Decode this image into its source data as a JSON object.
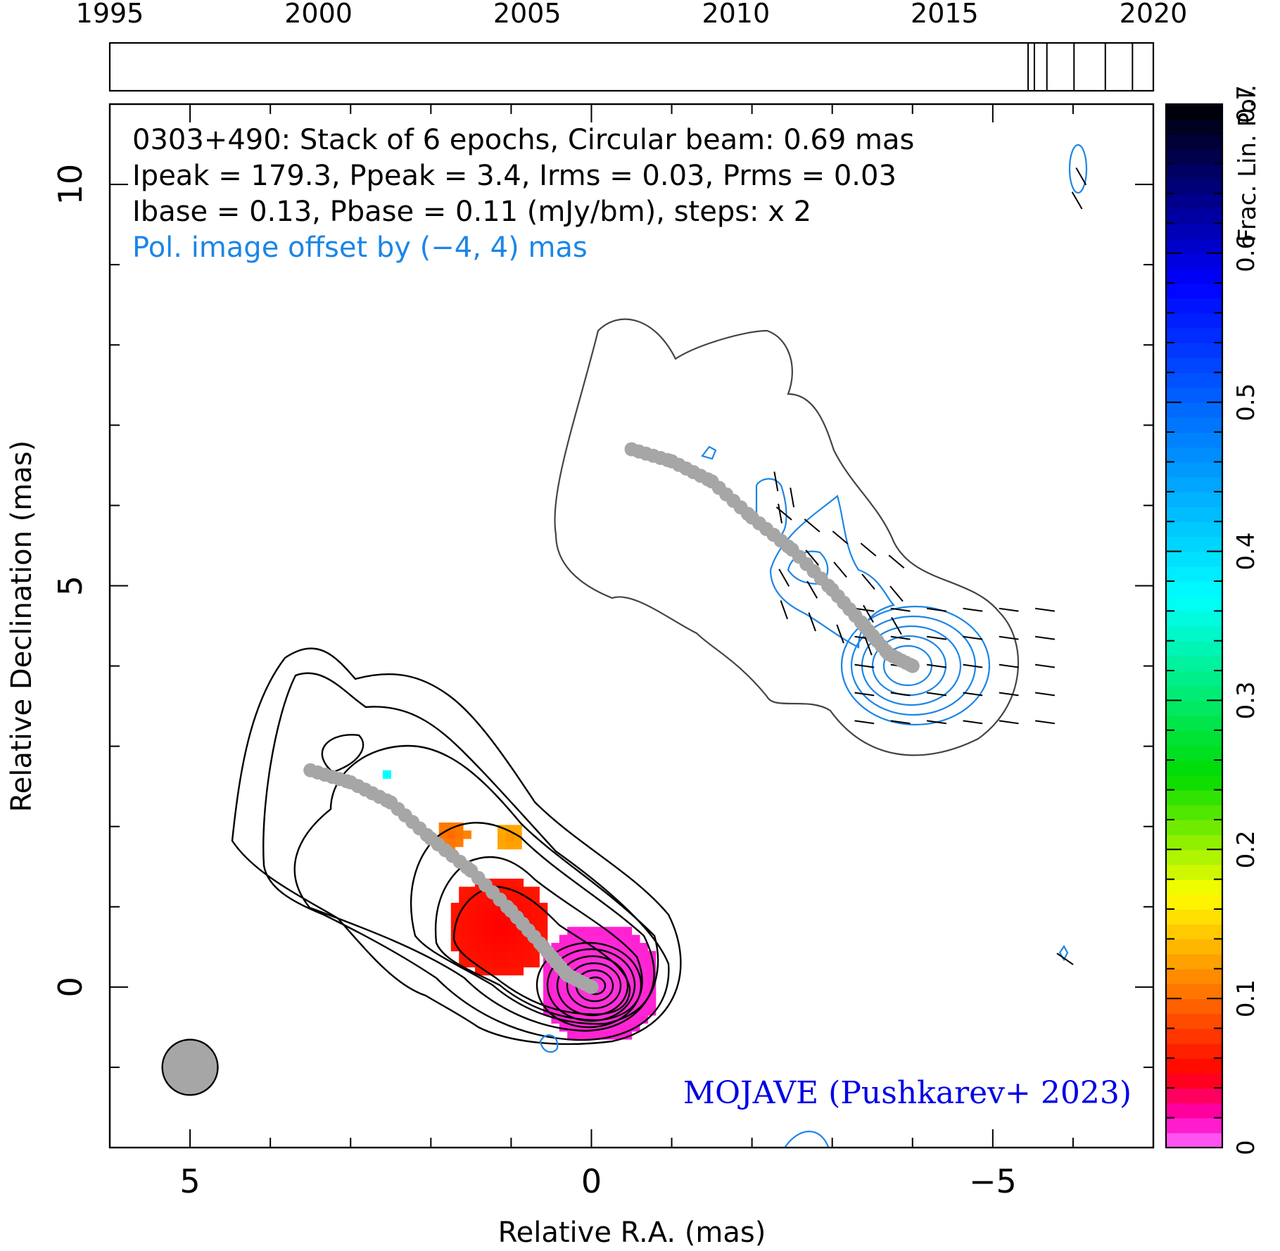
{
  "chart_data": {
    "type": "heatmap",
    "source": "0303+490",
    "annotation_lines": [
      "0303+490: Stack of 6 epochs, Circular beam: 0.69 mas",
      "Ipeak = 179.3, Ppeak = 3.4, Irms = 0.03, Prms = 0.03",
      "Ibase = 0.13, Pbase = 0.11 (mJy/bm), steps: x 2"
    ],
    "pol_offset_note": "Pol. image offset by (−4, 4) mas",
    "pol_offset_mas": [
      -4,
      4
    ],
    "credit": "MOJAVE (Pushkarev+ 2023)",
    "xlabel": "Relative R.A. (mas)",
    "ylabel": "Relative Declination (mas)",
    "xlim": [
      6,
      -7
    ],
    "ylim": [
      -2,
      11
    ],
    "xticks": [
      5,
      0,
      -5
    ],
    "xtick_labels": [
      "5",
      "0",
      "−5"
    ],
    "yticks": [
      0,
      5,
      10
    ],
    "ytick_labels": [
      "0",
      "5",
      "10"
    ],
    "beam_diameter_mas": 0.69,
    "ridgeline": {
      "color": "#a6a6a6",
      "points": [
        [
          3.5,
          2.7
        ],
        [
          3.0,
          2.55
        ],
        [
          2.5,
          2.3
        ],
        [
          2.0,
          1.85
        ],
        [
          1.5,
          1.45
        ],
        [
          1.0,
          0.95
        ],
        [
          0.6,
          0.5
        ],
        [
          0.3,
          0.15
        ],
        [
          0.0,
          0.0
        ]
      ]
    },
    "fractional_polarization": {
      "colorbar_label": "Frac. Lin. Pol.",
      "colorbar_range": [
        0,
        0.7
      ],
      "colorbar_ticks": [
        0,
        0.1,
        0.2,
        0.3,
        0.4,
        0.5,
        0.6,
        0.7
      ],
      "colorbar_tick_labels": [
        "0",
        "0.1",
        "0.2",
        "0.3",
        "0.4",
        "0.5",
        "0.6",
        "0.7"
      ],
      "regions": [
        {
          "name": "core",
          "center": [
            -0.1,
            0.05
          ],
          "radius": 0.75,
          "value": 0.01
        },
        {
          "name": "inner-jet",
          "center": [
            1.15,
            0.75
          ],
          "radius": 0.65,
          "value": 0.05
        },
        {
          "name": "jet-knot-a",
          "center": [
            1.75,
            1.9
          ],
          "radius": 0.2,
          "value": 0.1
        },
        {
          "name": "jet-knot-b",
          "center": [
            1.0,
            1.85
          ],
          "radius": 0.18,
          "value": 0.12
        },
        {
          "name": "isolated-pixel",
          "center": [
            2.55,
            2.65
          ],
          "radius": 0.1,
          "value": 0.37
        }
      ]
    },
    "timeline": {
      "range": [
        1995,
        2020
      ],
      "tick_labels": [
        "1995",
        "2000",
        "2005",
        "2010",
        "2015",
        "2020"
      ],
      "epochs": [
        2017.0,
        2017.15,
        2017.45,
        2018.1,
        2018.85,
        2019.5
      ]
    }
  }
}
